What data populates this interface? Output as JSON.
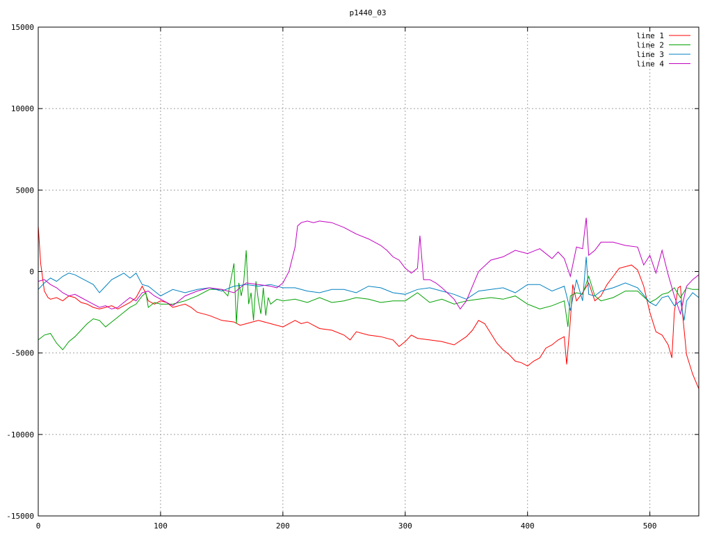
{
  "chart_data": {
    "type": "line",
    "title": "p1440_03",
    "xlabel": "",
    "ylabel": "",
    "xlim": [
      0,
      540
    ],
    "ylim": [
      -15000,
      15000
    ],
    "x_ticks": [
      0,
      100,
      200,
      300,
      400,
      500
    ],
    "y_ticks": [
      -15000,
      -10000,
      -5000,
      0,
      5000,
      10000,
      15000
    ],
    "grid": true,
    "legend_position": "top-right",
    "series": [
      {
        "name": "line 1",
        "color": "#ff0000",
        "x": [
          0,
          2,
          5,
          8,
          10,
          15,
          20,
          25,
          30,
          35,
          40,
          45,
          50,
          55,
          60,
          65,
          70,
          75,
          80,
          85,
          87,
          90,
          95,
          100,
          105,
          110,
          115,
          120,
          125,
          130,
          140,
          150,
          160,
          165,
          170,
          180,
          190,
          200,
          210,
          215,
          220,
          230,
          240,
          250,
          255,
          260,
          270,
          280,
          290,
          295,
          300,
          305,
          310,
          320,
          330,
          340,
          350,
          355,
          360,
          365,
          370,
          375,
          380,
          385,
          390,
          395,
          400,
          405,
          410,
          415,
          420,
          425,
          430,
          432,
          435,
          437,
          440,
          445,
          450,
          455,
          460,
          465,
          470,
          475,
          480,
          485,
          490,
          495,
          500,
          505,
          510,
          515,
          518,
          520,
          523,
          525,
          527,
          530,
          535,
          540
        ],
        "y": [
          2800,
          500,
          -1200,
          -1600,
          -1700,
          -1600,
          -1800,
          -1500,
          -1600,
          -1900,
          -2000,
          -2200,
          -2300,
          -2200,
          -2100,
          -2300,
          -2100,
          -1900,
          -1600,
          -900,
          -1200,
          -1800,
          -2000,
          -1800,
          -1900,
          -2200,
          -2100,
          -2000,
          -2200,
          -2500,
          -2700,
          -3000,
          -3100,
          -3300,
          -3200,
          -3000,
          -3200,
          -3400,
          -3000,
          -3200,
          -3100,
          -3500,
          -3600,
          -3900,
          -4200,
          -3700,
          -3900,
          -4000,
          -4200,
          -4600,
          -4300,
          -3900,
          -4100,
          -4200,
          -4300,
          -4500,
          -4000,
          -3600,
          -3000,
          -3200,
          -3800,
          -4400,
          -4800,
          -5100,
          -5500,
          -5600,
          -5800,
          -5500,
          -5300,
          -4700,
          -4500,
          -4200,
          -4000,
          -5700,
          -3000,
          -800,
          -1800,
          -1300,
          -700,
          -1800,
          -1500,
          -800,
          -300,
          200,
          300,
          400,
          100,
          -900,
          -2500,
          -3700,
          -3900,
          -4500,
          -5300,
          -2500,
          -1000,
          -900,
          -2800,
          -5100,
          -6300,
          -7200
        ]
      },
      {
        "name": "line 2",
        "color": "#00a000",
        "x": [
          0,
          5,
          10,
          15,
          20,
          25,
          30,
          35,
          40,
          45,
          50,
          55,
          60,
          65,
          70,
          75,
          80,
          85,
          88,
          90,
          95,
          100,
          110,
          120,
          130,
          140,
          150,
          155,
          160,
          162,
          164,
          166,
          168,
          170,
          172,
          174,
          176,
          178,
          180,
          182,
          184,
          186,
          188,
          190,
          195,
          200,
          210,
          220,
          230,
          240,
          250,
          260,
          270,
          280,
          290,
          300,
          310,
          320,
          330,
          340,
          350,
          360,
          370,
          380,
          390,
          400,
          410,
          420,
          430,
          433,
          435,
          440,
          445,
          450,
          455,
          460,
          470,
          480,
          490,
          500,
          505,
          510,
          515,
          520,
          525,
          530,
          535,
          540
        ],
        "y": [
          -4200,
          -3900,
          -3800,
          -4400,
          -4800,
          -4300,
          -4000,
          -3600,
          -3200,
          -2900,
          -3000,
          -3400,
          -3100,
          -2800,
          -2500,
          -2200,
          -2000,
          -1500,
          -1300,
          -2200,
          -1900,
          -2000,
          -2000,
          -1800,
          -1500,
          -1100,
          -1100,
          -1500,
          500,
          -3200,
          -700,
          -1500,
          -600,
          1300,
          -2000,
          -1300,
          -3000,
          -600,
          -1800,
          -2600,
          -1000,
          -2700,
          -1600,
          -2000,
          -1700,
          -1800,
          -1700,
          -1900,
          -1600,
          -1900,
          -1800,
          -1600,
          -1700,
          -1900,
          -1800,
          -1800,
          -1300,
          -1900,
          -1700,
          -2000,
          -1800,
          -1700,
          -1600,
          -1700,
          -1500,
          -2000,
          -2300,
          -2100,
          -1800,
          -3400,
          -1500,
          -1300,
          -1400,
          -300,
          -1500,
          -1800,
          -1600,
          -1200,
          -1200,
          -1900,
          -1700,
          -1400,
          -1300,
          -1000,
          -1600,
          -1000,
          -1100,
          -1100
        ]
      },
      {
        "name": "line 3",
        "color": "#0080c0",
        "x": [
          0,
          5,
          10,
          15,
          20,
          25,
          30,
          35,
          40,
          45,
          50,
          55,
          60,
          65,
          70,
          75,
          80,
          85,
          90,
          95,
          100,
          110,
          120,
          130,
          140,
          150,
          160,
          170,
          180,
          190,
          200,
          210,
          220,
          230,
          240,
          250,
          260,
          270,
          280,
          290,
          300,
          310,
          320,
          330,
          340,
          350,
          360,
          370,
          380,
          390,
          400,
          410,
          420,
          430,
          435,
          440,
          445,
          448,
          450,
          455,
          460,
          470,
          480,
          490,
          500,
          505,
          510,
          515,
          520,
          525,
          528,
          530,
          535,
          540
        ],
        "y": [
          -1100,
          -700,
          -400,
          -600,
          -300,
          -100,
          -200,
          -400,
          -600,
          -800,
          -1300,
          -900,
          -500,
          -300,
          -100,
          -400,
          -100,
          -800,
          -900,
          -1200,
          -1500,
          -1100,
          -1300,
          -1100,
          -1000,
          -1200,
          -900,
          -800,
          -900,
          -800,
          -1000,
          -1000,
          -1200,
          -1300,
          -1100,
          -1100,
          -1300,
          -900,
          -1000,
          -1300,
          -1400,
          -1100,
          -1000,
          -1200,
          -1400,
          -1700,
          -1200,
          -1100,
          -1000,
          -1300,
          -800,
          -800,
          -1200,
          -900,
          -2400,
          -500,
          -1800,
          900,
          -1400,
          -1500,
          -1200,
          -1000,
          -700,
          -1000,
          -1900,
          -2100,
          -1600,
          -1500,
          -2100,
          -1800,
          -3000,
          -1800,
          -1300,
          -1600
        ]
      },
      {
        "name": "line 4",
        "color": "#c000c0",
        "x": [
          0,
          5,
          10,
          15,
          20,
          25,
          30,
          35,
          40,
          45,
          50,
          55,
          60,
          65,
          70,
          75,
          80,
          85,
          90,
          95,
          100,
          110,
          120,
          130,
          140,
          150,
          160,
          170,
          180,
          190,
          195,
          200,
          205,
          210,
          212,
          215,
          220,
          225,
          230,
          240,
          250,
          260,
          270,
          280,
          285,
          290,
          295,
          300,
          305,
          310,
          312,
          315,
          320,
          325,
          330,
          340,
          345,
          350,
          355,
          360,
          370,
          380,
          390,
          400,
          410,
          420,
          425,
          430,
          435,
          440,
          445,
          448,
          450,
          455,
          460,
          470,
          480,
          490,
          495,
          500,
          505,
          510,
          515,
          520,
          525,
          530,
          535,
          540
        ],
        "y": [
          -600,
          -500,
          -800,
          -1000,
          -1300,
          -1500,
          -1400,
          -1600,
          -1800,
          -2000,
          -2200,
          -2100,
          -2300,
          -2200,
          -1900,
          -1600,
          -1800,
          -1300,
          -1200,
          -1500,
          -1700,
          -2100,
          -1500,
          -1200,
          -1000,
          -1100,
          -1300,
          -700,
          -800,
          -900,
          -1000,
          -700,
          0,
          1500,
          2800,
          3000,
          3100,
          3000,
          3100,
          3000,
          2700,
          2300,
          2000,
          1600,
          1300,
          900,
          700,
          200,
          -100,
          200,
          2200,
          -500,
          -500,
          -700,
          -1000,
          -1700,
          -2300,
          -1800,
          -900,
          0,
          700,
          900,
          1300,
          1100,
          1400,
          800,
          1200,
          800,
          -300,
          1500,
          1400,
          3300,
          1000,
          1300,
          1800,
          1800,
          1600,
          1500,
          400,
          1000,
          -100,
          1300,
          -200,
          -1500,
          -2600,
          -900,
          -500,
          -200
        ]
      }
    ]
  }
}
